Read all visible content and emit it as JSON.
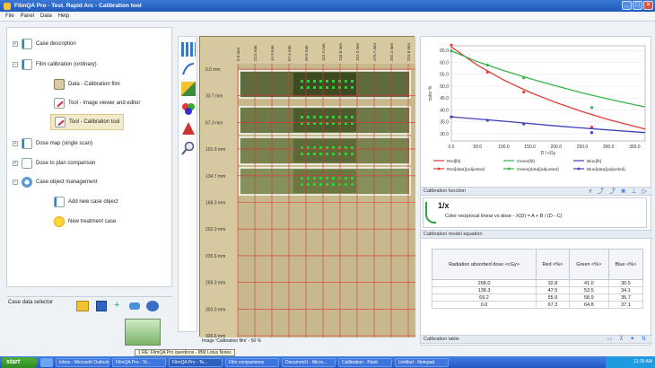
{
  "window": {
    "title": "FilmQA Pro - Test. Rapid Arc - Calibration tool"
  },
  "menu": [
    "File",
    "Panel",
    "Data",
    "Help"
  ],
  "tree": [
    {
      "label": "Case description",
      "level": 0,
      "icon": "doc-icon"
    },
    {
      "label": "Film calibration (ordinary)",
      "level": 0,
      "icon": "doc-icon"
    },
    {
      "label": "Data - Calibration film",
      "level": 1,
      "icon": "film-icon"
    },
    {
      "label": "Tool - Image viewer and editor",
      "level": 1,
      "icon": "tool-icon"
    },
    {
      "label": "Tool - Calibration tool",
      "level": 1,
      "icon": "tool-icon",
      "selected": true
    },
    {
      "label": "Dose map (single scan)",
      "level": 0,
      "icon": "doc-icon"
    },
    {
      "label": "Dose to plan comparison",
      "level": 0,
      "icon": "scale-icon"
    },
    {
      "label": "Case object management",
      "level": 0,
      "icon": "gear-icon"
    },
    {
      "label": "Add new case object",
      "level": 1,
      "icon": "doc-icon"
    },
    {
      "label": "New treatment case",
      "level": 1,
      "icon": "sun-icon"
    }
  ],
  "data_selector": {
    "label": "Case data selector"
  },
  "image": {
    "x_ticks": [
      "0.0 mm",
      "22.5 mm",
      "44.9 mm",
      "67.4 mm",
      "89.8 mm",
      "112.3 mm",
      "134.8 mm",
      "157.2 mm",
      "179.7 mm",
      "202.2 mm",
      "224.6 mm"
    ],
    "y_ticks": [
      "0.0 mm",
      "33.7 mm",
      "67.3 mm",
      "101.0 mm",
      "134.7 mm",
      "168.3 mm",
      "202.0 mm",
      "235.6 mm",
      "269.3 mm",
      "303.0 mm",
      "336.6 mm"
    ],
    "status": "Image 'Calibration film' - 50 %"
  },
  "chart_data": {
    "type": "line",
    "xlabel": "D / cGy",
    "ylabel": "color %",
    "xlim": [
      0,
      370
    ],
    "ylim": [
      27,
      67
    ],
    "x_ticks": [
      "0.0",
      "50.0",
      "100.0",
      "150.0",
      "200.0",
      "250.0",
      "300.0",
      "350.0"
    ],
    "y_ticks": [
      "65.0",
      "60.0",
      "55.0",
      "50.0",
      "45.0",
      "40.0",
      "35.0",
      "30.0"
    ],
    "series": [
      {
        "name": "Red[fit]",
        "color": "#e03a3a",
        "values": [
          [
            0,
            67.3
          ],
          [
            69.2,
            55.9
          ],
          [
            138.3,
            47.5
          ],
          [
            268.0,
            32.8
          ]
        ],
        "fit": [
          [
            0,
            66.5
          ],
          [
            50,
            58.8
          ],
          [
            100,
            52.6
          ],
          [
            150,
            47.4
          ],
          [
            200,
            43.1
          ],
          [
            250,
            39.3
          ],
          [
            300,
            36.0
          ],
          [
            350,
            33.1
          ],
          [
            370,
            32.0
          ]
        ]
      },
      {
        "name": "Green[fit]",
        "color": "#3ab24a",
        "values": [
          [
            0,
            64.8
          ],
          [
            69.2,
            58.9
          ],
          [
            138.3,
            53.5
          ],
          [
            268.0,
            41.0
          ]
        ],
        "fit": [
          [
            0,
            64.8
          ],
          [
            50,
            60.3
          ],
          [
            100,
            56.6
          ],
          [
            150,
            53.2
          ],
          [
            200,
            50.1
          ],
          [
            250,
            47.2
          ],
          [
            300,
            44.6
          ],
          [
            350,
            42.2
          ],
          [
            370,
            41.3
          ]
        ]
      },
      {
        "name": "Blue[fit]",
        "color": "#4040b8",
        "values": [
          [
            0,
            37.1
          ],
          [
            69.2,
            35.7
          ],
          [
            138.3,
            34.1
          ],
          [
            268.0,
            30.5
          ]
        ],
        "fit": [
          [
            0,
            37.1
          ],
          [
            100,
            35.3
          ],
          [
            200,
            33.3
          ],
          [
            300,
            31.6
          ],
          [
            370,
            30.5
          ]
        ]
      }
    ],
    "legend": [
      {
        "label": "Red[fit]",
        "color": "#e03a3a"
      },
      {
        "label": "Green[fit]",
        "color": "#3ab24a"
      },
      {
        "label": "Blue[fit]",
        "color": "#4040b8"
      },
      {
        "label": "Red[data](adjusted)",
        "color": "#e03a3a"
      },
      {
        "label": "Green[data](adjusted)",
        "color": "#3ab24a"
      },
      {
        "label": "Blue[data](adjusted)",
        "color": "#4040b8"
      }
    ]
  },
  "calibration_function": {
    "title": "Calibration function",
    "name": "1/x",
    "description": "Color reciprocal linear vs dose - X(D) = A + B / (D - C)"
  },
  "calibration_model": {
    "title": "Calibration model equation"
  },
  "calibration_table": {
    "title": "Calibration table",
    "headers": [
      "Radiation absorbed dose <cGy>",
      "Red <%>",
      "Green <%>",
      "Blue <%>"
    ],
    "rows": [
      [
        "268.0",
        "32.8",
        "41.0",
        "30.5"
      ],
      [
        "138.3",
        "47.5",
        "53.5",
        "34.1"
      ],
      [
        "69.2",
        "55.9",
        "58.9",
        "35.7"
      ],
      [
        "0.0",
        "67.3",
        "64.8",
        "37.1"
      ]
    ]
  },
  "tooltip": "1 RE: FilmQA Pro questions - IBM Lotus Notes",
  "taskbar": {
    "start": "start",
    "tasks": [
      "Inbox - Microsoft Outlook",
      "FilmQA Pro - Te...",
      "FilmQA Pro - Te...",
      "Film comparisons",
      "Document1 - Micro...",
      "Calibration - Paint",
      "Untitled - Notepad"
    ],
    "clock": "11:35 AM"
  }
}
